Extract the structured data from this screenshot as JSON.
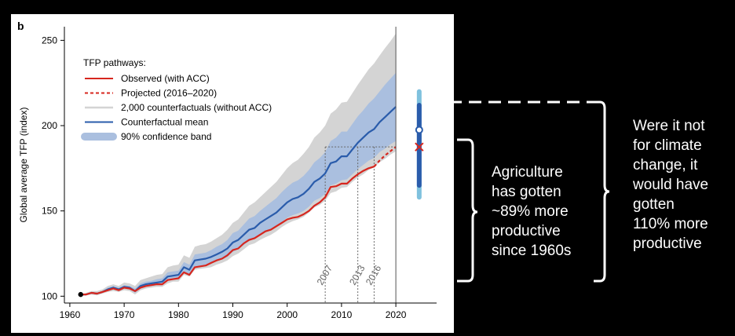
{
  "chart_data": {
    "type": "line",
    "panel_label": "b",
    "ylabel": "Global average TFP (index)",
    "xlabel": "",
    "xlim": [
      1959,
      2027.5
    ],
    "ylim": [
      96,
      258
    ],
    "x_ticks": [
      1960,
      1970,
      1980,
      1990,
      2000,
      2010,
      2020
    ],
    "y_ticks": [
      100,
      150,
      200,
      250
    ],
    "grid": false,
    "legend_position": "top-left",
    "legend_title": "TFP pathways:",
    "legend": [
      {
        "label": "Observed (with ACC)",
        "style": "red-line"
      },
      {
        "label": "Projected (2016–2020)",
        "style": "red-dashed"
      },
      {
        "label": "2,000 counterfactuals (without ACC)",
        "style": "grey-line"
      },
      {
        "label": "Counterfactual mean",
        "style": "blue-line"
      },
      {
        "label": "90% confidence band",
        "style": "blue-band"
      }
    ],
    "colors": {
      "observed": "#d7261e",
      "mean": "#2a5cab",
      "band": "#aabfdf",
      "counterfactuals": "#d4d4d4"
    },
    "observed": {
      "x": [
        1962,
        1963,
        1964,
        1965,
        1966,
        1967,
        1968,
        1969,
        1970,
        1971,
        1972,
        1973,
        1974,
        1975,
        1976,
        1977,
        1978,
        1979,
        1980,
        1981,
        1982,
        1983,
        1984,
        1985,
        1986,
        1987,
        1988,
        1989,
        1990,
        1991,
        1992,
        1993,
        1994,
        1995,
        1996,
        1997,
        1998,
        1999,
        2000,
        2001,
        2002,
        2003,
        2004,
        2005,
        2006,
        2007,
        2008,
        2009,
        2010,
        2011,
        2012,
        2013,
        2014,
        2015,
        2016
      ],
      "y": [
        101,
        101,
        102,
        101.5,
        102.5,
        103.5,
        104.5,
        103.5,
        105,
        104.5,
        103,
        105,
        106,
        106.5,
        107,
        107,
        109.5,
        110,
        110.5,
        114,
        112.5,
        117,
        117.5,
        118,
        119.5,
        121,
        122,
        124,
        127,
        128,
        131,
        133,
        134,
        136,
        138,
        139,
        141,
        143,
        145,
        146,
        146.5,
        148,
        150,
        153,
        155,
        158,
        164,
        164.5,
        166,
        166,
        169,
        171.5,
        173.5,
        175,
        176
      ]
    },
    "projected": {
      "x": [
        2016,
        2017,
        2018,
        2019,
        2020
      ],
      "y": [
        176,
        179.5,
        182.5,
        185,
        187.5
      ]
    },
    "counterfactual_mean": {
      "x": [
        1962,
        1963,
        1964,
        1965,
        1966,
        1967,
        1968,
        1969,
        1970,
        1971,
        1972,
        1973,
        1974,
        1975,
        1976,
        1977,
        1978,
        1979,
        1980,
        1981,
        1982,
        1983,
        1984,
        1985,
        1986,
        1987,
        1988,
        1989,
        1990,
        1991,
        1992,
        1993,
        1994,
        1995,
        1996,
        1997,
        1998,
        1999,
        2000,
        2001,
        2002,
        2003,
        2004,
        2005,
        2006,
        2007,
        2008,
        2009,
        2010,
        2011,
        2012,
        2013,
        2014,
        2015,
        2016,
        2017,
        2018,
        2019,
        2020
      ],
      "y": [
        101,
        101,
        102,
        101.5,
        102.5,
        104,
        105,
        104,
        105.5,
        105,
        103,
        106,
        107,
        107.5,
        108,
        108.5,
        111.5,
        112,
        112.5,
        117,
        115.5,
        121,
        121.5,
        122,
        123,
        124.5,
        126,
        128,
        131.5,
        133,
        136,
        139,
        140,
        143,
        145,
        147,
        149,
        152,
        155,
        157,
        158,
        160,
        163,
        167,
        169,
        172,
        178,
        179,
        182,
        182,
        186,
        190,
        193,
        196,
        198,
        202,
        205,
        208,
        211
      ]
    },
    "band_lower": [
      101,
      101,
      101.5,
      101,
      102,
      103,
      104,
      103,
      104.5,
      104,
      102,
      104.5,
      105.5,
      106,
      106.5,
      106.5,
      109,
      110,
      110,
      114,
      113,
      117.5,
      118,
      118.5,
      119,
      120.5,
      121.5,
      123,
      126,
      127.5,
      130,
      132.5,
      133.5,
      136,
      137.5,
      139,
      141,
      143.5,
      146,
      147.5,
      148.5,
      150,
      152.5,
      156,
      157.5,
      160,
      165,
      166,
      168,
      168.5,
      171.5,
      174.5,
      177,
      179.5,
      181,
      184.5,
      186.5,
      189,
      191
    ],
    "band_upper": [
      101,
      101.5,
      102.5,
      102,
      103,
      105,
      106,
      105,
      106.5,
      106,
      104.5,
      107.5,
      108.5,
      109,
      110,
      110.5,
      114,
      114.5,
      115,
      120,
      118.5,
      124.5,
      125,
      125.5,
      127,
      129,
      130.5,
      133,
      137,
      138.5,
      142,
      145.5,
      147,
      150,
      152.5,
      155,
      157.5,
      161,
      164,
      166.5,
      168,
      170.5,
      174,
      178.5,
      181,
      184.5,
      191,
      193,
      196.5,
      196.5,
      201,
      205.5,
      209,
      213,
      216,
      220,
      224,
      227.5,
      231
    ],
    "cf_envelope_lower": [
      101,
      100.5,
      101,
      100.5,
      101.5,
      102.5,
      103,
      102.5,
      103.5,
      103,
      101,
      103.5,
      104.5,
      105,
      105.5,
      105.5,
      107.5,
      108.5,
      108.5,
      112.5,
      111.5,
      115.5,
      116,
      116.5,
      117,
      118.5,
      119.5,
      121,
      123.5,
      125,
      127.5,
      130,
      131,
      133,
      134.5,
      136,
      138,
      140.5,
      142.5,
      144,
      145,
      146.5,
      149,
      152,
      153.5,
      156,
      160.5,
      161.5,
      163.5,
      164,
      167,
      169.5,
      171.5,
      174,
      175.5,
      178.5,
      180.5,
      183,
      185
    ],
    "cf_envelope_upper": [
      101,
      102,
      103,
      103,
      104,
      106,
      107,
      106,
      108,
      107.5,
      106,
      109.5,
      110.5,
      111.5,
      112.5,
      113,
      117,
      118,
      118.5,
      124,
      122.5,
      129,
      130,
      130.5,
      132,
      134,
      136,
      139,
      143,
      145,
      149,
      153,
      155,
      158,
      161,
      164,
      167,
      171,
      175,
      178,
      180,
      183.5,
      187.5,
      193,
      196,
      200,
      207,
      209.5,
      213.5,
      214,
      219,
      224,
      228.5,
      233,
      236.5,
      241,
      245.5,
      249.5,
      254
    ],
    "verticals": [
      {
        "year": 2007,
        "label": "2007",
        "y_top": 187.5
      },
      {
        "year": 2013,
        "label": "2013",
        "y_top": 187.5
      },
      {
        "year": 2016,
        "label": "2016",
        "y_top": 187.5
      }
    ],
    "reference_y": 187.5,
    "divider_year": 2020,
    "inset": {
      "x": 2024.3,
      "thin": [
        158,
        220
      ],
      "thick": [
        165,
        212
      ],
      "median": 197.5,
      "projected_value": 187.5
    },
    "start_point": {
      "x": 1962,
      "y": 101
    }
  },
  "annotations": {
    "left": [
      "Agriculture",
      "has gotten",
      "~89% more",
      "productive",
      "since 1960s"
    ],
    "right": [
      "Were it not",
      "for climate",
      "change, it",
      "would have",
      "gotten",
      "110% more",
      "productive"
    ]
  }
}
